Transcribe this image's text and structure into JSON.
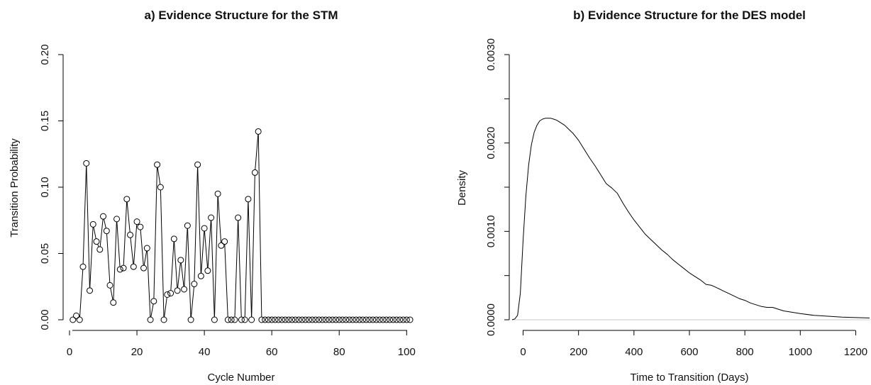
{
  "chart_data": [
    {
      "type": "line",
      "title": "a) Evidence Structure for the STM",
      "xlabel": "Cycle Number",
      "ylabel": "Transition Probability",
      "xlim": [
        0,
        101
      ],
      "ylim": [
        0,
        0.2
      ],
      "xticks": [
        0,
        20,
        40,
        60,
        80,
        100
      ],
      "yticks": [
        0.0,
        0.05,
        0.1,
        0.15,
        0.2
      ],
      "xtick_labels": [
        "0",
        "20",
        "40",
        "60",
        "80",
        "100"
      ],
      "ytick_labels": [
        "0.00",
        "0.05",
        "0.10",
        "0.15",
        "0.20"
      ],
      "markers": "open-circle",
      "grid": false,
      "x": [
        1,
        2,
        3,
        4,
        5,
        6,
        7,
        8,
        9,
        10,
        11,
        12,
        13,
        14,
        15,
        16,
        17,
        18,
        19,
        20,
        21,
        22,
        23,
        24,
        25,
        26,
        27,
        28,
        29,
        30,
        31,
        32,
        33,
        34,
        35,
        36,
        37,
        38,
        39,
        40,
        41,
        42,
        43,
        44,
        45,
        46,
        47,
        48,
        49,
        50,
        51,
        52,
        53,
        54,
        55,
        56,
        57,
        58,
        59,
        60,
        61,
        62,
        63,
        64,
        65,
        66,
        67,
        68,
        69,
        70,
        71,
        72,
        73,
        74,
        75,
        76,
        77,
        78,
        79,
        80,
        81,
        82,
        83,
        84,
        85,
        86,
        87,
        88,
        89,
        90,
        91,
        92,
        93,
        94,
        95,
        96,
        97,
        98,
        99,
        100,
        101
      ],
      "y": [
        0.0,
        0.003,
        0.0,
        0.04,
        0.118,
        0.022,
        0.072,
        0.059,
        0.053,
        0.078,
        0.067,
        0.026,
        0.013,
        0.076,
        0.038,
        0.039,
        0.091,
        0.064,
        0.04,
        0.074,
        0.07,
        0.039,
        0.054,
        0.0,
        0.014,
        0.117,
        0.1,
        0.0,
        0.019,
        0.02,
        0.061,
        0.022,
        0.045,
        0.023,
        0.071,
        0.0,
        0.027,
        0.117,
        0.033,
        0.069,
        0.037,
        0.077,
        0.0,
        0.095,
        0.056,
        0.059,
        0.0,
        0.0,
        0.0,
        0.077,
        0.0,
        0.0,
        0.091,
        0.0,
        0.111,
        0.142,
        0.0,
        0.0,
        0.0,
        0.0,
        0.0,
        0.0,
        0.0,
        0.0,
        0.0,
        0.0,
        0.0,
        0.0,
        0.0,
        0.0,
        0.0,
        0.0,
        0.0,
        0.0,
        0.0,
        0.0,
        0.0,
        0.0,
        0.0,
        0.0,
        0.0,
        0.0,
        0.0,
        0.0,
        0.0,
        0.0,
        0.0,
        0.0,
        0.0,
        0.0,
        0.0,
        0.0,
        0.0,
        0.0,
        0.0,
        0.0,
        0.0,
        0.0,
        0.0,
        0.0,
        0.0
      ]
    },
    {
      "type": "line",
      "title": "b) Evidence Structure for the DES model",
      "xlabel": "Time to Transition (Days)",
      "ylabel": "Density",
      "xlim": [
        -40,
        1250
      ],
      "ylim": [
        0,
        0.003
      ],
      "xticks": [
        0,
        200,
        400,
        600,
        800,
        1000,
        1200
      ],
      "yticks": [
        0.0,
        0.001,
        0.002,
        0.003
      ],
      "xtick_labels": [
        "0",
        "200",
        "400",
        "600",
        "800",
        "1000",
        "1200"
      ],
      "ytick_labels": [
        "0.0000",
        "0.0010",
        "0.0020",
        "0.0030"
      ],
      "minor_yticks": [
        0.0005,
        0.0015,
        0.0025
      ],
      "grid": false,
      "baseline": 0,
      "x": [
        -40,
        -30,
        -20,
        -10,
        0,
        10,
        20,
        30,
        40,
        50,
        60,
        70,
        80,
        90,
        100,
        110,
        120,
        130,
        140,
        150,
        160,
        170,
        180,
        190,
        200,
        220,
        240,
        260,
        280,
        300,
        320,
        340,
        360,
        380,
        400,
        420,
        440,
        460,
        480,
        500,
        520,
        540,
        560,
        580,
        600,
        620,
        640,
        660,
        680,
        700,
        720,
        740,
        760,
        780,
        800,
        820,
        840,
        860,
        880,
        900,
        920,
        940,
        960,
        980,
        1000,
        1050,
        1100,
        1150,
        1200,
        1250
      ],
      "y": [
        0.0,
        1e-05,
        5e-05,
        0.0003,
        0.0009,
        0.0014,
        0.00175,
        0.00198,
        0.00212,
        0.0022,
        0.00225,
        0.00227,
        0.00228,
        0.00228,
        0.00228,
        0.00227,
        0.00226,
        0.00224,
        0.00222,
        0.0022,
        0.00217,
        0.00214,
        0.00211,
        0.00207,
        0.00203,
        0.00193,
        0.00183,
        0.00174,
        0.00164,
        0.00154,
        0.00149,
        0.00143,
        0.00132,
        0.00122,
        0.00113,
        0.00105,
        0.00097,
        0.00091,
        0.00085,
        0.00079,
        0.00074,
        0.00068,
        0.00063,
        0.00058,
        0.00053,
        0.00049,
        0.00045,
        0.0004,
        0.00039,
        0.00036,
        0.00033,
        0.0003,
        0.00027,
        0.00024,
        0.00022,
        0.00019,
        0.00017,
        0.00015,
        0.00014,
        0.00014,
        0.00012,
        0.0001,
        9e-05,
        8e-05,
        7e-05,
        5e-05,
        4e-05,
        3e-05,
        2.5e-05,
        2e-05
      ]
    }
  ]
}
